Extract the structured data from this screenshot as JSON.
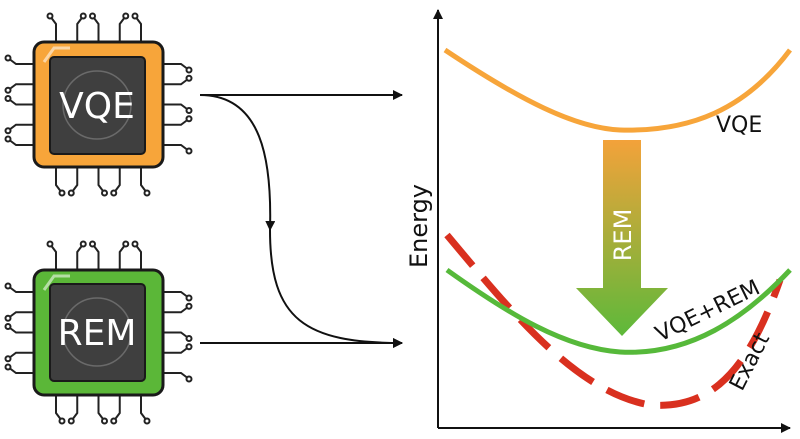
{
  "chips": [
    {
      "label": "VQE",
      "body_color": "#F7A53A",
      "border_color": "#1a1a1a"
    },
    {
      "label": "REM",
      "body_color": "#5BB738",
      "border_color": "#1a1a1a"
    }
  ],
  "plot": {
    "ylabel": "Energy",
    "curves": [
      {
        "label": "VQE",
        "color": "#F7A53A",
        "style": "solid"
      },
      {
        "label": "VQE+REM",
        "color": "#56B93A",
        "style": "solid"
      },
      {
        "label": "Exact",
        "color": "#D9301F",
        "style": "dashed"
      }
    ],
    "shift_arrow": {
      "label": "REM",
      "top_color": "#F3A23A",
      "bottom_color": "#5DB93A"
    }
  }
}
